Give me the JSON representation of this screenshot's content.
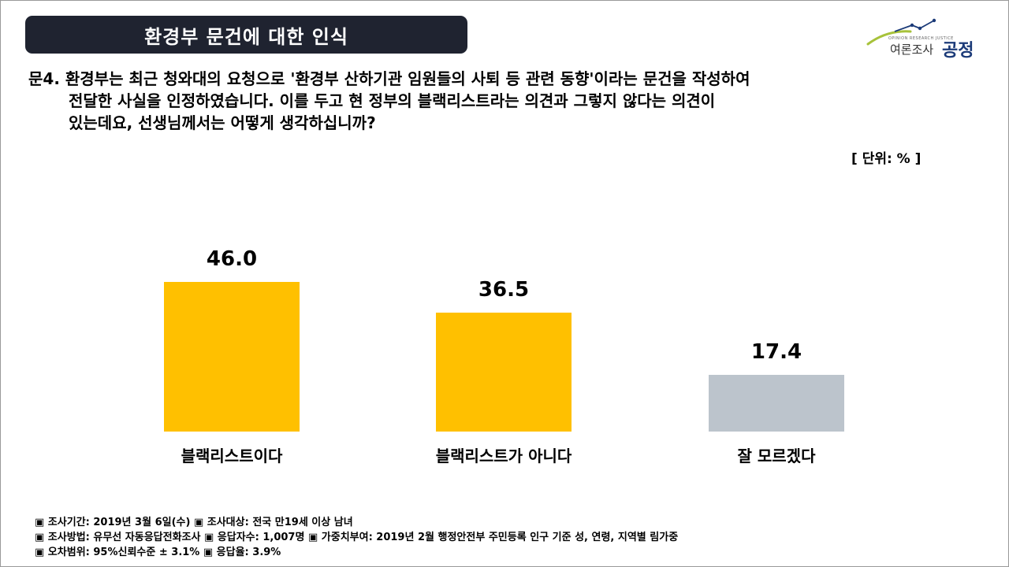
{
  "header": {
    "title": "환경부 문건에 대한 인식"
  },
  "logo": {
    "small_text": "OPINION RESEARCH JUSTICE",
    "korean_text": "여론조사",
    "brand_text": "공정",
    "colors": {
      "line": "#1b3a78",
      "swoosh": "#a7c23a"
    }
  },
  "question": {
    "line1": "문4. 환경부는 최근 청와대의 요청으로 '환경부 산하기관 임원들의 사퇴 등 관련 동향'이라는 문건을 작성하여",
    "line2": "전달한 사실을 인정하였습니다. 이를 두고 현 정부의 블랙리스트라는 의견과 그렇지 않다는 의견이",
    "line3": "있는데요, 선생님께서는 어떻게 생각하십니까?"
  },
  "unit_label": "[ 단위: % ]",
  "chart_data": {
    "type": "bar",
    "categories": [
      "블랙리스트이다",
      "블랙리스트가 아니다",
      "잘 모르겠다"
    ],
    "values": [
      46.0,
      36.5,
      17.4
    ],
    "value_labels": [
      "46.0",
      "36.5",
      "17.4"
    ],
    "colors": [
      "#ffc000",
      "#ffc000",
      "#bcc4cc"
    ],
    "title": "",
    "xlabel": "",
    "ylabel": "",
    "ylim": [
      0,
      50
    ],
    "grid": false,
    "legend": "none"
  },
  "footer": {
    "line1": "▣ 조사기간: 2019년 3월 6일(수) ▣ 조사대상: 전국 만19세 이상 남녀",
    "line2": "▣ 조사방법: 유무선 자동응답전화조사 ▣ 응답자수: 1,007명 ▣ 가중치부여: 2019년 2월 행정안전부 주민등록 인구 기준 성, 연령, 지역별 림가중",
    "line3": "▣ 오차범위: 95%신뢰수준 ± 3.1% ▣ 응답율: 3.9%"
  }
}
